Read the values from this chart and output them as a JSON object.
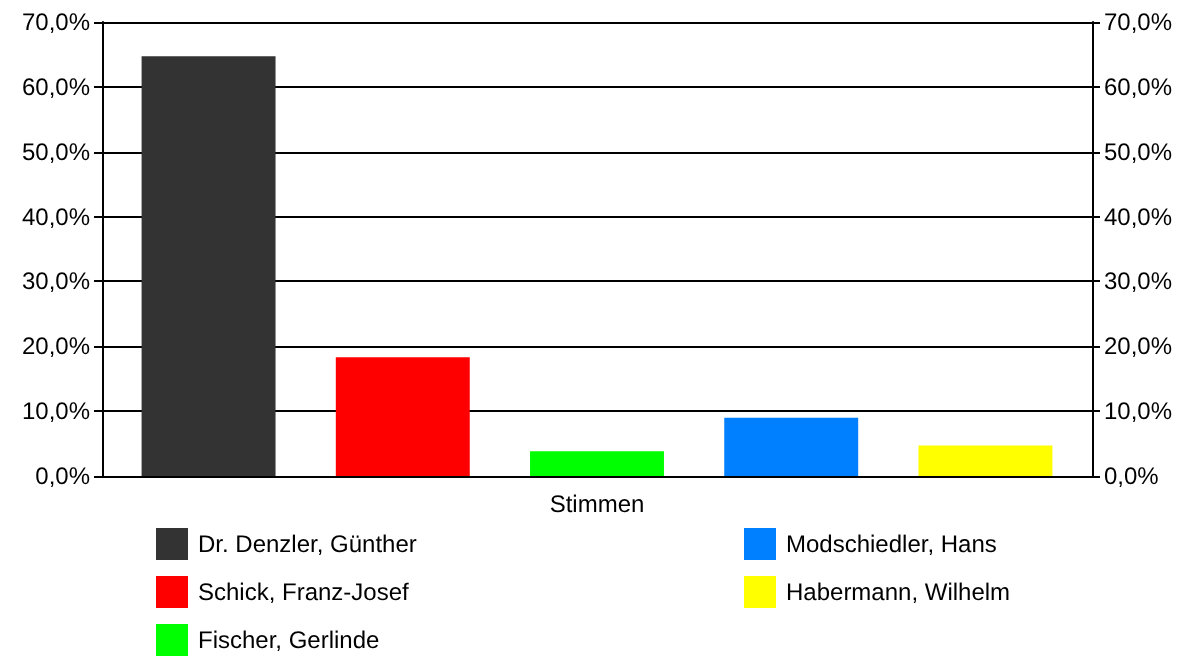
{
  "chart_data": {
    "type": "bar",
    "categories": [
      "Stimmen"
    ],
    "series": [
      {
        "name": "Dr. Denzler, Günther",
        "color": "#333333",
        "values": [
          64.7
        ]
      },
      {
        "name": "Schick, Franz-Josef",
        "color": "#ff0000",
        "values": [
          18.3
        ]
      },
      {
        "name": "Fischer, Gerlinde",
        "color": "#00ff00",
        "values": [
          3.8
        ]
      },
      {
        "name": "Modschiedler, Hans",
        "color": "#0080ff",
        "values": [
          9.0
        ]
      },
      {
        "name": "Habermann, Wilhelm",
        "color": "#ffff00",
        "values": [
          4.7
        ]
      }
    ],
    "ylim": [
      0,
      70
    ],
    "yticks": [
      {
        "value": 0,
        "label": "0,0%"
      },
      {
        "value": 10,
        "label": "10,0%"
      },
      {
        "value": 20,
        "label": "20,0%"
      },
      {
        "value": 30,
        "label": "30,0%"
      },
      {
        "value": 40,
        "label": "40,0%"
      },
      {
        "value": 50,
        "label": "50,0%"
      },
      {
        "value": 60,
        "label": "60,0%"
      },
      {
        "value": 70,
        "label": "70,0%"
      }
    ],
    "grid": "y",
    "legend": "bottom"
  }
}
